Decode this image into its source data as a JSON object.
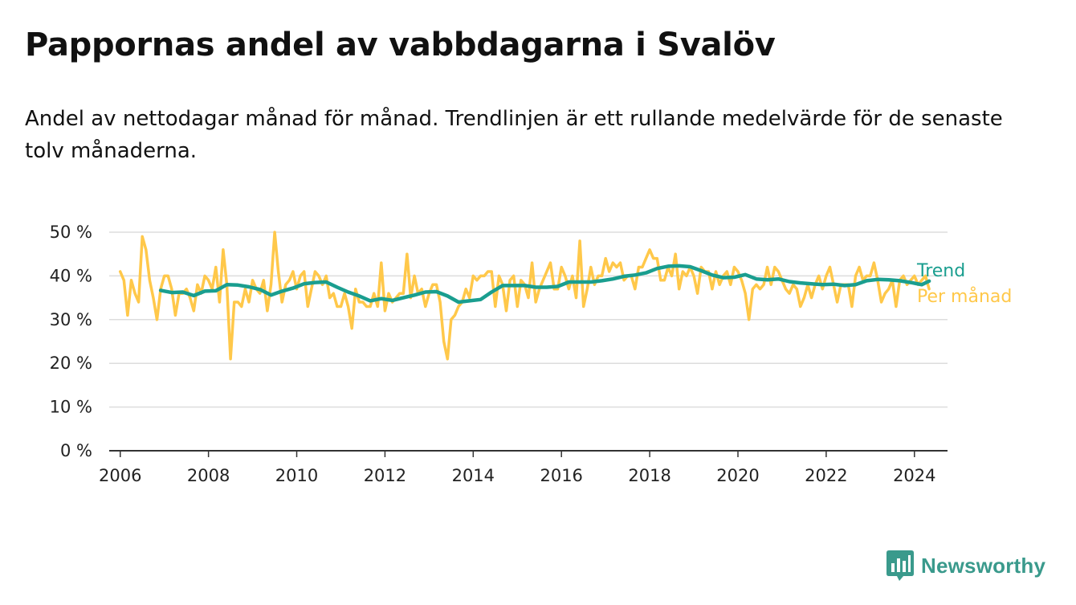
{
  "title": "Pappornas andel av vabbdagarna i Svalöv",
  "subtitle": "Andel av nettodagar månad för månad. Trendlinjen är ett rullande medelvärde för de senaste tolv månaderna.",
  "brand": {
    "name": "Newsworthy",
    "icon": "newsworthy-logo-icon"
  },
  "colors": {
    "trend": "#1a9e8f",
    "monthly": "#ffc84a",
    "grid": "#dddddd",
    "axis": "#333333"
  },
  "chart_data": {
    "type": "line",
    "x_type": "date",
    "xlim": [
      "2005-10",
      "2024-10"
    ],
    "ylim": [
      0,
      50
    ],
    "y_ticks": [
      0,
      10,
      20,
      30,
      40,
      50
    ],
    "y_tick_labels": [
      "0 %",
      "10 %",
      "20 %",
      "30 %",
      "40 %",
      "50 %"
    ],
    "x_ticks": [
      "2006-01",
      "2008-01",
      "2010-01",
      "2012-01",
      "2014-01",
      "2016-01",
      "2018-01",
      "2020-01",
      "2022-01",
      "2024-01"
    ],
    "x_tick_labels": [
      "2006",
      "2008",
      "2010",
      "2012",
      "2014",
      "2016",
      "2018",
      "2020",
      "2022",
      "2024"
    ],
    "grid": "horizontal",
    "legend": "right, at line ends",
    "series": [
      {
        "name": "Per månad",
        "color": "#ffc84a",
        "points": [
          [
            "2006-01",
            41
          ],
          [
            "2006-02",
            39
          ],
          [
            "2006-03",
            31
          ],
          [
            "2006-04",
            39
          ],
          [
            "2006-05",
            36
          ],
          [
            "2006-06",
            34
          ],
          [
            "2006-07",
            49
          ],
          [
            "2006-08",
            46
          ],
          [
            "2006-09",
            39
          ],
          [
            "2006-10",
            35
          ],
          [
            "2006-11",
            30
          ],
          [
            "2006-12",
            37
          ],
          [
            "2007-01",
            40
          ],
          [
            "2007-02",
            40
          ],
          [
            "2007-03",
            37
          ],
          [
            "2007-04",
            31
          ],
          [
            "2007-05",
            36
          ],
          [
            "2007-06",
            36
          ],
          [
            "2007-07",
            37
          ],
          [
            "2007-08",
            35
          ],
          [
            "2007-09",
            32
          ],
          [
            "2007-10",
            38
          ],
          [
            "2007-11",
            36
          ],
          [
            "2007-12",
            40
          ],
          [
            "2008-01",
            39
          ],
          [
            "2008-02",
            37
          ],
          [
            "2008-03",
            42
          ],
          [
            "2008-04",
            34
          ],
          [
            "2008-05",
            46
          ],
          [
            "2008-06",
            38
          ],
          [
            "2008-07",
            21
          ],
          [
            "2008-08",
            34
          ],
          [
            "2008-09",
            34
          ],
          [
            "2008-10",
            33
          ],
          [
            "2008-11",
            37
          ],
          [
            "2008-12",
            34
          ],
          [
            "2009-01",
            39
          ],
          [
            "2009-02",
            37
          ],
          [
            "2009-03",
            36
          ],
          [
            "2009-04",
            39
          ],
          [
            "2009-05",
            32
          ],
          [
            "2009-06",
            38
          ],
          [
            "2009-07",
            50
          ],
          [
            "2009-08",
            41
          ],
          [
            "2009-09",
            34
          ],
          [
            "2009-10",
            38
          ],
          [
            "2009-11",
            39
          ],
          [
            "2009-12",
            41
          ],
          [
            "2010-01",
            37
          ],
          [
            "2010-02",
            40
          ],
          [
            "2010-03",
            41
          ],
          [
            "2010-04",
            33
          ],
          [
            "2010-05",
            37
          ],
          [
            "2010-06",
            41
          ],
          [
            "2010-07",
            40
          ],
          [
            "2010-08",
            38
          ],
          [
            "2010-09",
            40
          ],
          [
            "2010-10",
            35
          ],
          [
            "2010-11",
            36
          ],
          [
            "2010-12",
            33
          ],
          [
            "2011-01",
            33
          ],
          [
            "2011-02",
            36
          ],
          [
            "2011-03",
            33
          ],
          [
            "2011-04",
            28
          ],
          [
            "2011-05",
            37
          ],
          [
            "2011-06",
            34
          ],
          [
            "2011-07",
            34
          ],
          [
            "2011-08",
            33
          ],
          [
            "2011-09",
            33
          ],
          [
            "2011-10",
            36
          ],
          [
            "2011-11",
            33
          ],
          [
            "2011-12",
            43
          ],
          [
            "2012-01",
            32
          ],
          [
            "2012-02",
            36
          ],
          [
            "2012-03",
            34
          ],
          [
            "2012-04",
            35
          ],
          [
            "2012-05",
            36
          ],
          [
            "2012-06",
            36
          ],
          [
            "2012-07",
            45
          ],
          [
            "2012-08",
            35
          ],
          [
            "2012-09",
            40
          ],
          [
            "2012-10",
            36
          ],
          [
            "2012-11",
            37
          ],
          [
            "2012-12",
            33
          ],
          [
            "2013-01",
            36
          ],
          [
            "2013-02",
            38
          ],
          [
            "2013-03",
            38
          ],
          [
            "2013-04",
            34
          ],
          [
            "2013-05",
            25
          ],
          [
            "2013-06",
            21
          ],
          [
            "2013-07",
            30
          ],
          [
            "2013-08",
            31
          ],
          [
            "2013-09",
            33
          ],
          [
            "2013-10",
            34
          ],
          [
            "2013-11",
            37
          ],
          [
            "2013-12",
            35
          ],
          [
            "2014-01",
            40
          ],
          [
            "2014-02",
            39
          ],
          [
            "2014-03",
            40
          ],
          [
            "2014-04",
            40
          ],
          [
            "2014-05",
            41
          ],
          [
            "2014-06",
            41
          ],
          [
            "2014-07",
            33
          ],
          [
            "2014-08",
            40
          ],
          [
            "2014-09",
            38
          ],
          [
            "2014-10",
            32
          ],
          [
            "2014-11",
            39
          ],
          [
            "2014-12",
            40
          ],
          [
            "2015-01",
            33
          ],
          [
            "2015-02",
            39
          ],
          [
            "2015-03",
            38
          ],
          [
            "2015-04",
            35
          ],
          [
            "2015-05",
            43
          ],
          [
            "2015-06",
            34
          ],
          [
            "2015-07",
            37
          ],
          [
            "2015-08",
            39
          ],
          [
            "2015-09",
            41
          ],
          [
            "2015-10",
            43
          ],
          [
            "2015-11",
            37
          ],
          [
            "2015-12",
            37
          ],
          [
            "2016-01",
            42
          ],
          [
            "2016-02",
            40
          ],
          [
            "2016-03",
            37
          ],
          [
            "2016-04",
            40
          ],
          [
            "2016-05",
            35
          ],
          [
            "2016-06",
            48
          ],
          [
            "2016-07",
            33
          ],
          [
            "2016-08",
            37
          ],
          [
            "2016-09",
            42
          ],
          [
            "2016-10",
            38
          ],
          [
            "2016-11",
            40
          ],
          [
            "2016-12",
            40
          ],
          [
            "2017-01",
            44
          ],
          [
            "2017-02",
            41
          ],
          [
            "2017-03",
            43
          ],
          [
            "2017-04",
            42
          ],
          [
            "2017-05",
            43
          ],
          [
            "2017-06",
            39
          ],
          [
            "2017-07",
            40
          ],
          [
            "2017-08",
            40
          ],
          [
            "2017-09",
            37
          ],
          [
            "2017-10",
            42
          ],
          [
            "2017-11",
            42
          ],
          [
            "2017-12",
            44
          ],
          [
            "2018-01",
            46
          ],
          [
            "2018-02",
            44
          ],
          [
            "2018-03",
            44
          ],
          [
            "2018-04",
            39
          ],
          [
            "2018-05",
            39
          ],
          [
            "2018-06",
            42
          ],
          [
            "2018-07",
            40
          ],
          [
            "2018-08",
            45
          ],
          [
            "2018-09",
            37
          ],
          [
            "2018-10",
            41
          ],
          [
            "2018-11",
            40
          ],
          [
            "2018-12",
            42
          ],
          [
            "2019-01",
            40
          ],
          [
            "2019-02",
            36
          ],
          [
            "2019-03",
            42
          ],
          [
            "2019-04",
            41
          ],
          [
            "2019-05",
            41
          ],
          [
            "2019-06",
            37
          ],
          [
            "2019-07",
            41
          ],
          [
            "2019-08",
            38
          ],
          [
            "2019-09",
            40
          ],
          [
            "2019-10",
            41
          ],
          [
            "2019-11",
            38
          ],
          [
            "2019-12",
            42
          ],
          [
            "2020-01",
            41
          ],
          [
            "2020-02",
            39
          ],
          [
            "2020-03",
            36
          ],
          [
            "2020-04",
            30
          ],
          [
            "2020-05",
            37
          ],
          [
            "2020-06",
            38
          ],
          [
            "2020-07",
            37
          ],
          [
            "2020-08",
            38
          ],
          [
            "2020-09",
            42
          ],
          [
            "2020-10",
            38
          ],
          [
            "2020-11",
            42
          ],
          [
            "2020-12",
            41
          ],
          [
            "2021-01",
            39
          ],
          [
            "2021-02",
            37
          ],
          [
            "2021-03",
            36
          ],
          [
            "2021-04",
            38
          ],
          [
            "2021-05",
            37
          ],
          [
            "2021-06",
            33
          ],
          [
            "2021-07",
            35
          ],
          [
            "2021-08",
            38
          ],
          [
            "2021-09",
            35
          ],
          [
            "2021-10",
            38
          ],
          [
            "2021-11",
            40
          ],
          [
            "2021-12",
            37
          ],
          [
            "2022-01",
            40
          ],
          [
            "2022-02",
            42
          ],
          [
            "2022-03",
            38
          ],
          [
            "2022-04",
            34
          ],
          [
            "2022-05",
            38
          ],
          [
            "2022-06",
            38
          ],
          [
            "2022-07",
            38
          ],
          [
            "2022-08",
            33
          ],
          [
            "2022-09",
            40
          ],
          [
            "2022-10",
            42
          ],
          [
            "2022-11",
            39
          ],
          [
            "2022-12",
            40
          ],
          [
            "2023-01",
            40
          ],
          [
            "2023-02",
            43
          ],
          [
            "2023-03",
            39
          ],
          [
            "2023-04",
            34
          ],
          [
            "2023-05",
            36
          ],
          [
            "2023-06",
            37
          ],
          [
            "2023-07",
            39
          ],
          [
            "2023-08",
            33
          ],
          [
            "2023-09",
            39
          ],
          [
            "2023-10",
            40
          ],
          [
            "2023-11",
            38
          ],
          [
            "2023-12",
            39
          ],
          [
            "2024-01",
            40
          ],
          [
            "2024-02",
            38
          ],
          [
            "2024-03",
            39
          ],
          [
            "2024-04",
            40
          ],
          [
            "2024-05",
            37
          ]
        ]
      },
      {
        "name": "Trend",
        "color": "#1a9e8f",
        "points": [
          [
            "2006-12",
            36.7
          ],
          [
            "2007-03",
            36.2
          ],
          [
            "2007-06",
            36.3
          ],
          [
            "2007-09",
            35.5
          ],
          [
            "2007-12",
            36.5
          ],
          [
            "2008-03",
            36.6
          ],
          [
            "2008-06",
            38.0
          ],
          [
            "2008-09",
            37.9
          ],
          [
            "2008-12",
            37.5
          ],
          [
            "2009-03",
            36.9
          ],
          [
            "2009-06",
            35.6
          ],
          [
            "2009-09",
            36.5
          ],
          [
            "2009-12",
            37.2
          ],
          [
            "2010-03",
            38.2
          ],
          [
            "2010-06",
            38.5
          ],
          [
            "2010-09",
            38.6
          ],
          [
            "2010-12",
            37.4
          ],
          [
            "2011-03",
            36.3
          ],
          [
            "2011-06",
            35.4
          ],
          [
            "2011-09",
            34.3
          ],
          [
            "2011-12",
            34.8
          ],
          [
            "2012-03",
            34.4
          ],
          [
            "2012-06",
            35.0
          ],
          [
            "2012-09",
            35.6
          ],
          [
            "2012-12",
            36.3
          ],
          [
            "2013-03",
            36.4
          ],
          [
            "2013-06",
            35.4
          ],
          [
            "2013-09",
            34.0
          ],
          [
            "2013-12",
            34.3
          ],
          [
            "2014-03",
            34.6
          ],
          [
            "2014-06",
            36.3
          ],
          [
            "2014-09",
            37.8
          ],
          [
            "2014-12",
            37.8
          ],
          [
            "2015-03",
            37.8
          ],
          [
            "2015-06",
            37.4
          ],
          [
            "2015-09",
            37.4
          ],
          [
            "2015-12",
            37.6
          ],
          [
            "2016-03",
            38.6
          ],
          [
            "2016-06",
            38.6
          ],
          [
            "2016-09",
            38.6
          ],
          [
            "2016-12",
            38.9
          ],
          [
            "2017-03",
            39.3
          ],
          [
            "2017-06",
            39.9
          ],
          [
            "2017-09",
            40.2
          ],
          [
            "2017-12",
            40.7
          ],
          [
            "2018-03",
            41.7
          ],
          [
            "2018-06",
            42.2
          ],
          [
            "2018-09",
            42.3
          ],
          [
            "2018-12",
            42.1
          ],
          [
            "2019-03",
            41.2
          ],
          [
            "2019-06",
            40.2
          ],
          [
            "2019-09",
            39.6
          ],
          [
            "2019-12",
            39.7
          ],
          [
            "2020-03",
            40.3
          ],
          [
            "2020-06",
            39.3
          ],
          [
            "2020-09",
            39.1
          ],
          [
            "2020-12",
            39.3
          ],
          [
            "2021-03",
            38.7
          ],
          [
            "2021-06",
            38.4
          ],
          [
            "2021-09",
            38.2
          ],
          [
            "2021-12",
            38.0
          ],
          [
            "2022-03",
            38.1
          ],
          [
            "2022-06",
            37.8
          ],
          [
            "2022-09",
            38.0
          ],
          [
            "2022-12",
            38.9
          ],
          [
            "2023-03",
            39.2
          ],
          [
            "2023-06",
            39.1
          ],
          [
            "2023-09",
            38.9
          ],
          [
            "2023-12",
            38.5
          ],
          [
            "2024-03",
            38.0
          ],
          [
            "2024-05",
            38.8
          ]
        ]
      }
    ]
  }
}
